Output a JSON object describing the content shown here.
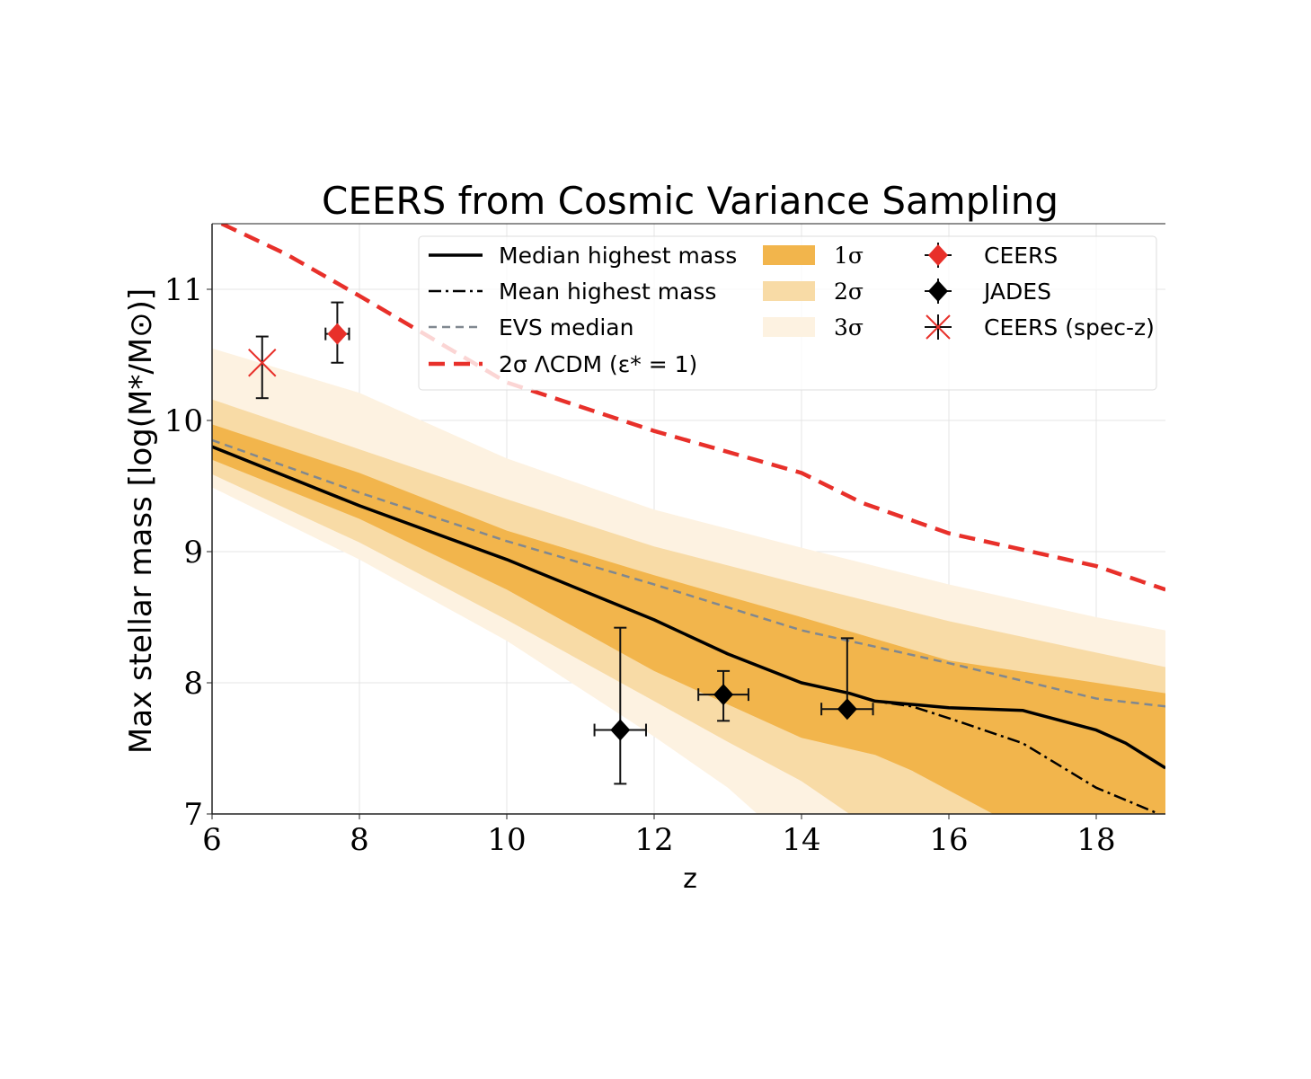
{
  "chart_data": {
    "type": "line",
    "title": "CEERS from Cosmic Variance Sampling",
    "xlabel": "z",
    "ylabel": "Max stellar mass [log(M*/M⊙)]",
    "xlim": [
      6,
      18.94
    ],
    "ylim": [
      7,
      11.5
    ],
    "xticks": [
      6,
      8,
      10,
      12,
      14,
      16,
      18
    ],
    "yticks": [
      7,
      8,
      9,
      10,
      11
    ],
    "grid": true,
    "legend_placement": "top-right",
    "bands": [
      {
        "name": "3σ",
        "color": "#fdf2e1",
        "upper": [
          [
            6,
            10.55
          ],
          [
            8,
            10.21
          ],
          [
            10,
            9.71
          ],
          [
            12,
            9.32
          ],
          [
            14,
            9.03
          ],
          [
            16,
            8.75
          ],
          [
            18,
            8.5
          ],
          [
            18.94,
            8.4
          ]
        ],
        "lower": [
          [
            6,
            9.49
          ],
          [
            8,
            8.94
          ],
          [
            10,
            8.32
          ],
          [
            12,
            7.59
          ],
          [
            13,
            7.2
          ],
          [
            13.4,
            7.0
          ]
        ]
      },
      {
        "name": "2σ",
        "color": "#f8dba6",
        "upper": [
          [
            6,
            10.16
          ],
          [
            8,
            9.78
          ],
          [
            10,
            9.4
          ],
          [
            12,
            9.04
          ],
          [
            14,
            8.75
          ],
          [
            16,
            8.47
          ],
          [
            18,
            8.23
          ],
          [
            18.94,
            8.12
          ]
        ],
        "lower": [
          [
            6,
            9.59
          ],
          [
            8,
            9.07
          ],
          [
            10,
            8.48
          ],
          [
            12,
            7.86
          ],
          [
            13,
            7.55
          ],
          [
            14,
            7.25
          ],
          [
            14.65,
            7.0
          ]
        ]
      },
      {
        "name": "1σ",
        "color": "#f2b54c",
        "upper": [
          [
            6,
            9.97
          ],
          [
            8,
            9.6
          ],
          [
            10,
            9.16
          ],
          [
            12,
            8.82
          ],
          [
            14,
            8.5
          ],
          [
            16,
            8.17
          ],
          [
            18,
            8.0
          ],
          [
            18.94,
            7.92
          ]
        ],
        "lower": [
          [
            6,
            9.7
          ],
          [
            8,
            9.25
          ],
          [
            10,
            8.71
          ],
          [
            12,
            8.09
          ],
          [
            14,
            7.58
          ],
          [
            15,
            7.45
          ],
          [
            15.5,
            7.33
          ],
          [
            16,
            7.18
          ],
          [
            16.6,
            7.0
          ]
        ]
      }
    ],
    "series": [
      {
        "name": "Median highest mass",
        "color": "#000000",
        "style": "solid",
        "points": [
          [
            6,
            9.8
          ],
          [
            8,
            9.35
          ],
          [
            10,
            8.94
          ],
          [
            12,
            8.48
          ],
          [
            13,
            8.22
          ],
          [
            14,
            8.0
          ],
          [
            14.65,
            7.92
          ],
          [
            15,
            7.86
          ],
          [
            16,
            7.81
          ],
          [
            17,
            7.79
          ],
          [
            18,
            7.64
          ],
          [
            18.4,
            7.54
          ],
          [
            18.94,
            7.35
          ]
        ]
      },
      {
        "name": "Mean highest mass",
        "color": "#000000",
        "style": "dashdot",
        "points": [
          [
            6,
            9.8
          ],
          [
            8,
            9.35
          ],
          [
            10,
            8.94
          ],
          [
            12,
            8.48
          ],
          [
            13,
            8.22
          ],
          [
            14,
            8.0
          ],
          [
            14.65,
            7.92
          ],
          [
            15,
            7.86
          ],
          [
            15.5,
            7.82
          ],
          [
            16,
            7.73
          ],
          [
            17,
            7.54
          ],
          [
            18,
            7.2
          ],
          [
            18.85,
            7.0
          ]
        ]
      },
      {
        "name": "EVS median",
        "color": "#808890",
        "style": "dashed",
        "points": [
          [
            6,
            9.85
          ],
          [
            8,
            9.45
          ],
          [
            10,
            9.08
          ],
          [
            12,
            8.75
          ],
          [
            14,
            8.4
          ],
          [
            16,
            8.15
          ],
          [
            18,
            7.88
          ],
          [
            18.94,
            7.82
          ]
        ]
      },
      {
        "name": "2σ ΛCDM (ε* = 1)",
        "color": "#e8302a",
        "style": "dashed-thick",
        "points": [
          [
            6.13,
            11.5
          ],
          [
            7,
            11.27
          ],
          [
            8,
            10.95
          ],
          [
            10,
            10.29
          ],
          [
            12,
            9.92
          ],
          [
            14,
            9.6
          ],
          [
            14.83,
            9.37
          ],
          [
            16,
            9.14
          ],
          [
            18,
            8.89
          ],
          [
            18.94,
            8.71
          ]
        ]
      }
    ],
    "points": [
      {
        "name": "CEERS",
        "color": "#e8302a",
        "marker": "diamond",
        "x": 7.7,
        "y": 10.66,
        "xerr": 0.16,
        "yerr_low": 0.22,
        "yerr_high": 0.24
      },
      {
        "name": "JADES",
        "color": "#000000",
        "marker": "diamond",
        "x": 11.54,
        "y": 7.64,
        "xerr": 0.35,
        "yerr_low": 0.41,
        "yerr_high": 0.78
      },
      {
        "name": "JADES",
        "color": "#000000",
        "marker": "diamond",
        "x": 12.94,
        "y": 7.91,
        "xerr": 0.34,
        "yerr_low": 0.2,
        "yerr_high": 0.18
      },
      {
        "name": "JADES",
        "color": "#000000",
        "marker": "diamond",
        "x": 14.62,
        "y": 7.8,
        "xerr": 0.35,
        "yerr_low": 0.0,
        "yerr_high": 0.54
      },
      {
        "name": "CEERS (spec-z)",
        "color": "#e8302a",
        "marker": "x",
        "x": 6.68,
        "y": 10.44,
        "xerr": 0,
        "yerr_low": 0.27,
        "yerr_high": 0.2
      }
    ],
    "legend": {
      "lines": [
        "Median highest mass",
        "Mean highest mass",
        "EVS median",
        "2σ ΛCDM (ε* = 1)"
      ],
      "bands": [
        "1σ",
        "2σ",
        "3σ"
      ],
      "markers": [
        "CEERS",
        "JADES",
        "CEERS (spec-z)"
      ]
    }
  }
}
